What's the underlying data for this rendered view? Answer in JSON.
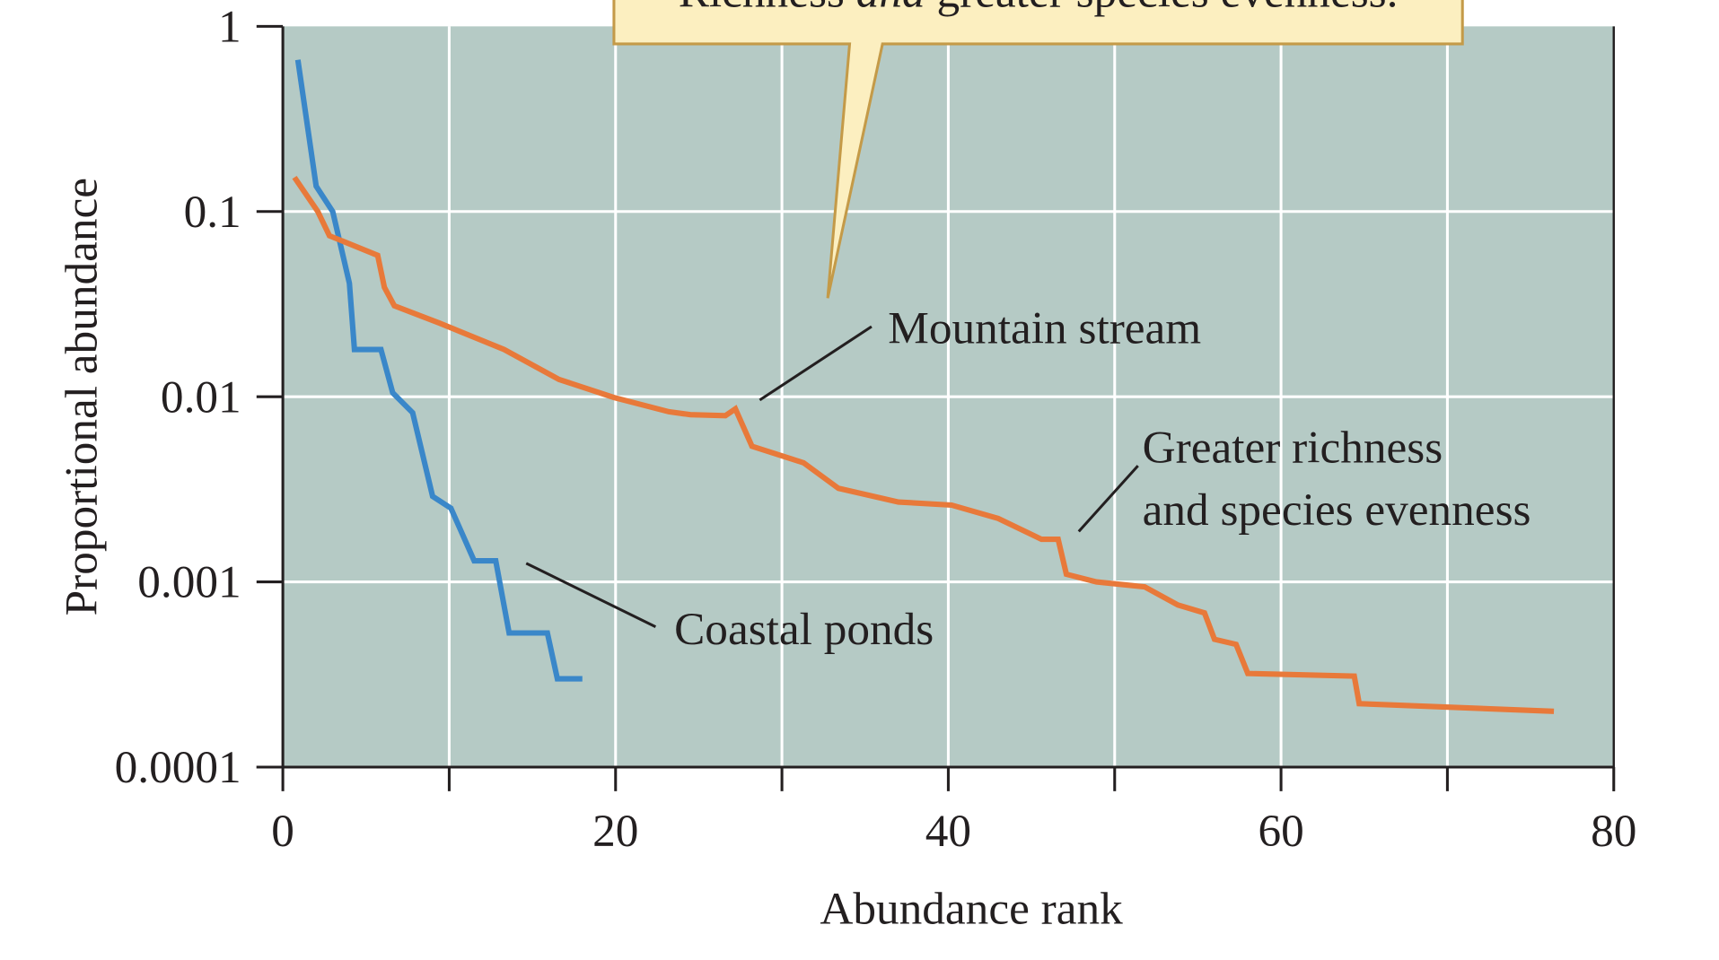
{
  "chart_data": {
    "type": "line",
    "xlabel": "Abundance rank",
    "ylabel": "Proportional abundance",
    "xlim": [
      0,
      80
    ],
    "ylim": [
      0.0001,
      1
    ],
    "yscale": "log",
    "grid": true,
    "x_ticks": [
      "0",
      "20",
      "40",
      "60",
      "80"
    ],
    "y_ticks": [
      "1",
      "0.1",
      "0.01",
      "0.001",
      "0.0001"
    ],
    "background_color": "#b5cac5",
    "callout": {
      "text_before": "Richness ",
      "text_italic": "and",
      "text_after": " greater species evenness."
    },
    "series": [
      {
        "name": "Coastal ponds",
        "color": "#3a87c9",
        "x": [
          0.9,
          2,
          3,
          4,
          4.3,
          5.9,
          6.6,
          7.8,
          9,
          10.1,
          11.5,
          12.8,
          13.6,
          15.9,
          16.5,
          18
        ],
        "y": [
          0.66,
          0.137,
          0.1,
          0.041,
          0.018,
          0.018,
          0.0105,
          0.0082,
          0.0029,
          0.0025,
          0.0013,
          0.0013,
          0.00053,
          0.00053,
          0.0003,
          0.0003
        ]
      },
      {
        "name": "Mountain stream",
        "color": "#e8793a",
        "x": [
          0.7,
          2.1,
          2.8,
          5.7,
          6.1,
          6.7,
          9.4,
          13.3,
          16.6,
          19.9,
          23.2,
          24.5,
          26.6,
          27.2,
          28.2,
          31.3,
          33.4,
          37,
          40.2,
          43,
          45.6,
          46.6,
          47.1,
          48.9,
          51.8,
          53.8,
          55.4,
          56,
          57.3,
          58,
          64.4,
          64.7,
          76.4
        ],
        "y": [
          0.153,
          0.1,
          0.074,
          0.058,
          0.039,
          0.031,
          0.025,
          0.018,
          0.0124,
          0.0099,
          0.0083,
          0.008,
          0.0079,
          0.0086,
          0.0054,
          0.0044,
          0.0032,
          0.0027,
          0.0026,
          0.0022,
          0.0017,
          0.0017,
          0.0011,
          0.001,
          0.00094,
          0.00075,
          0.00068,
          0.00049,
          0.00046,
          0.00032,
          0.00031,
          0.00022,
          0.0002
        ]
      }
    ],
    "annotations": {
      "mountain_stream": "Mountain stream",
      "greater_line1": "Greater richness",
      "greater_line2": "and species evenness",
      "coastal_ponds": "Coastal ponds"
    }
  }
}
